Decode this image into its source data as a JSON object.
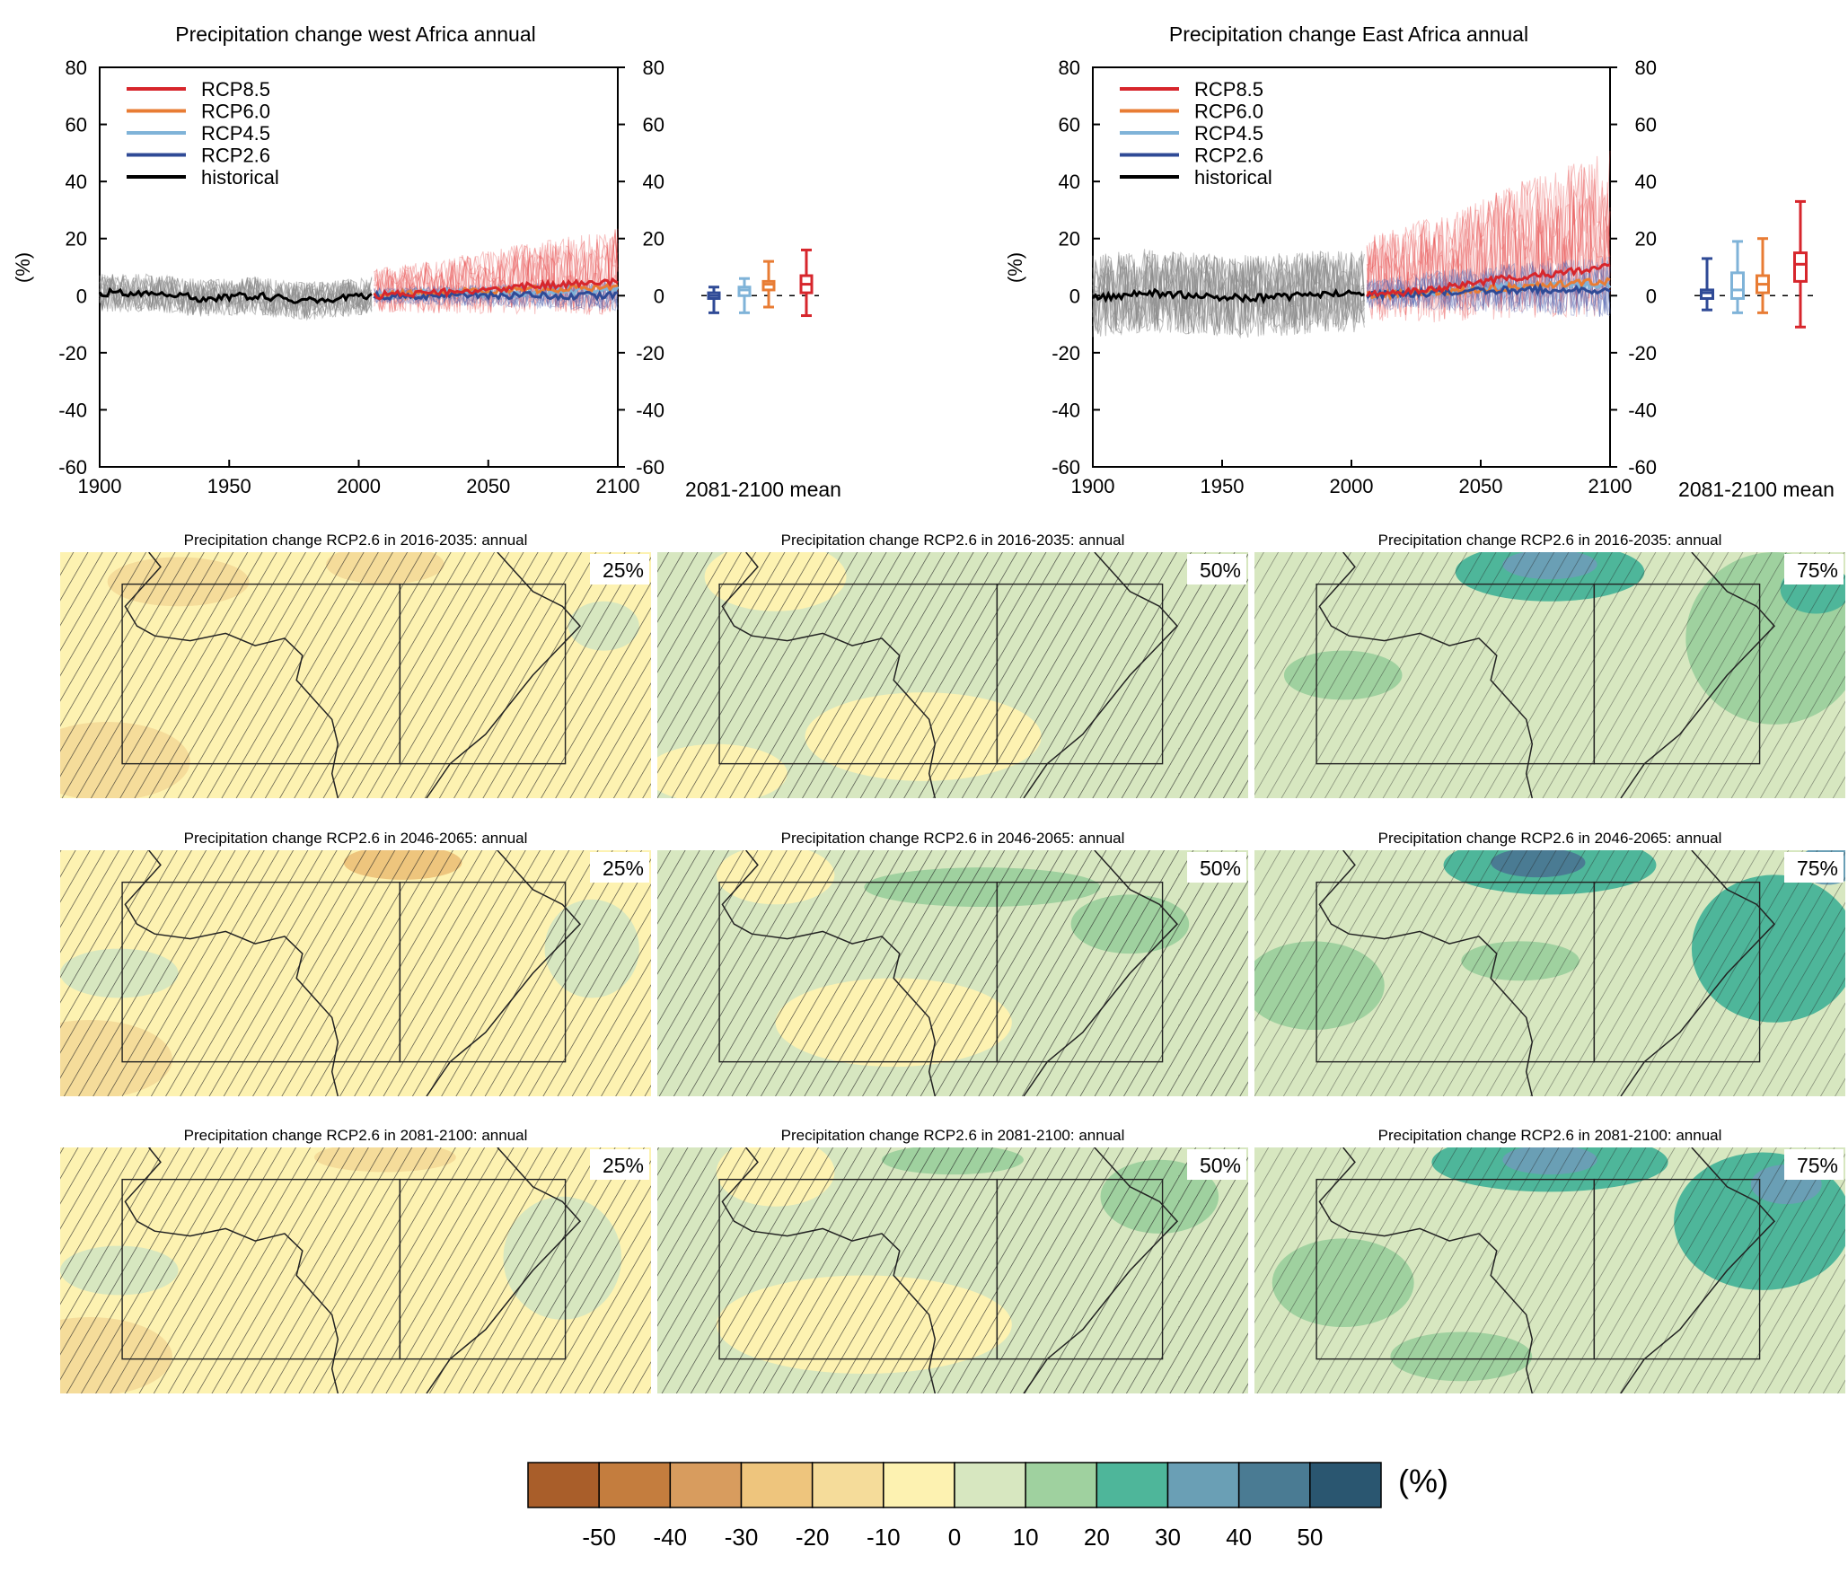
{
  "figure": {
    "legend_labels": [
      "RCP8.5",
      "RCP6.0",
      "RCP4.5",
      "RCP2.6",
      "historical"
    ],
    "legend_colors": [
      "#d7262c",
      "#e87c34",
      "#7fb3d8",
      "#2f4a96",
      "#000000"
    ],
    "ylabel": "(%)",
    "boxplot_label": "2081-2100 mean",
    "colorbar_unit": "(%)"
  },
  "chart_data": [
    {
      "type": "line",
      "title": "Precipitation change west Africa annual",
      "xlabel": "",
      "ylabel": "(%)",
      "xlim": [
        1900,
        2100
      ],
      "ylim": [
        -60,
        80
      ],
      "xticks": [
        1900,
        1950,
        2000,
        2050,
        2100
      ],
      "yticks": [
        80,
        60,
        40,
        20,
        0,
        -20,
        -40,
        -60
      ],
      "right_axis_ticks": [
        80,
        60,
        40,
        20,
        0,
        -20,
        -40,
        -60
      ],
      "series": [
        {
          "name": "historical",
          "x": [
            1900,
            1920,
            1940,
            1960,
            1980,
            2005
          ],
          "y": [
            1,
            1,
            -1,
            0,
            -2,
            0
          ],
          "spread": [
            -12,
            12
          ]
        },
        {
          "name": "RCP2.6",
          "x": [
            2006,
            2030,
            2060,
            2100
          ],
          "y": [
            0,
            0,
            0,
            0
          ],
          "spread": [
            -8,
            8
          ]
        },
        {
          "name": "RCP4.5",
          "x": [
            2006,
            2030,
            2060,
            2100
          ],
          "y": [
            0,
            1,
            1,
            2
          ]
        },
        {
          "name": "RCP6.0",
          "x": [
            2006,
            2030,
            2060,
            2100
          ],
          "y": [
            0,
            1,
            2,
            3
          ]
        },
        {
          "name": "RCP8.5",
          "x": [
            2006,
            2030,
            2060,
            2100
          ],
          "y": [
            0,
            1,
            3,
            5
          ],
          "spread": [
            -18,
            28
          ]
        }
      ],
      "boxplots_2081_2100_mean": [
        {
          "name": "RCP2.6",
          "min": -6,
          "q1": -1,
          "median": 0,
          "q3": 1,
          "max": 3
        },
        {
          "name": "RCP4.5",
          "min": -6,
          "q1": 0,
          "median": 2,
          "q3": 3,
          "max": 6
        },
        {
          "name": "RCP6.0",
          "min": -4,
          "q1": 2,
          "median": 4,
          "q3": 5,
          "max": 12
        },
        {
          "name": "RCP8.5",
          "min": -7,
          "q1": 1,
          "median": 4,
          "q3": 7,
          "max": 16
        }
      ]
    },
    {
      "type": "line",
      "title": "Precipitation change East Africa annual",
      "xlabel": "",
      "ylabel": "(%)",
      "xlim": [
        1900,
        2100
      ],
      "ylim": [
        -60,
        80
      ],
      "xticks": [
        1900,
        1950,
        2000,
        2050,
        2100
      ],
      "yticks": [
        80,
        60,
        40,
        20,
        0,
        -20,
        -40,
        -60
      ],
      "right_axis_ticks": [
        80,
        60,
        40,
        20,
        0,
        -20,
        -40,
        -60
      ],
      "series": [
        {
          "name": "historical",
          "x": [
            1900,
            1920,
            1940,
            1960,
            1980,
            2005
          ],
          "y": [
            -1,
            1,
            0,
            -1,
            0,
            1
          ],
          "spread": [
            -25,
            28
          ]
        },
        {
          "name": "RCP2.6",
          "x": [
            2006,
            2030,
            2060,
            2100
          ],
          "y": [
            0,
            1,
            2,
            2
          ],
          "spread": [
            -15,
            18
          ]
        },
        {
          "name": "RCP4.5",
          "x": [
            2006,
            2030,
            2060,
            2100
          ],
          "y": [
            0,
            1,
            3,
            4
          ]
        },
        {
          "name": "RCP6.0",
          "x": [
            2006,
            2030,
            2060,
            2100
          ],
          "y": [
            0,
            1,
            3,
            5
          ]
        },
        {
          "name": "RCP8.5",
          "x": [
            2006,
            2030,
            2060,
            2100
          ],
          "y": [
            0,
            2,
            6,
            10
          ],
          "spread": [
            -28,
            62
          ]
        }
      ],
      "boxplots_2081_2100_mean": [
        {
          "name": "RCP2.6",
          "min": -5,
          "q1": -1,
          "median": 1,
          "q3": 2,
          "max": 13
        },
        {
          "name": "RCP4.5",
          "min": -6,
          "q1": -1,
          "median": 2,
          "q3": 8,
          "max": 19
        },
        {
          "name": "RCP6.0",
          "min": -6,
          "q1": 1,
          "median": 4,
          "q3": 7,
          "max": 20
        },
        {
          "name": "RCP8.5",
          "min": -11,
          "q1": 5,
          "median": 11,
          "q3": 15,
          "max": 33
        }
      ]
    },
    {
      "type": "heatmap",
      "maps": [
        {
          "title": "Precipitation change RCP2.6 in 2016-2035: annual",
          "percentile": "25%"
        },
        {
          "title": "Precipitation change RCP2.6 in 2016-2035: annual",
          "percentile": "50%"
        },
        {
          "title": "Precipitation change RCP2.6 in 2016-2035: annual",
          "percentile": "75%"
        },
        {
          "title": "Precipitation change RCP2.6 in 2046-2065: annual",
          "percentile": "25%"
        },
        {
          "title": "Precipitation change RCP2.6 in 2046-2065: annual",
          "percentile": "50%"
        },
        {
          "title": "Precipitation change RCP2.6 in 2046-2065: annual",
          "percentile": "75%"
        },
        {
          "title": "Precipitation change RCP2.6 in 2081-2100: annual",
          "percentile": "25%"
        },
        {
          "title": "Precipitation change RCP2.6 in 2081-2100: annual",
          "percentile": "50%"
        },
        {
          "title": "Precipitation change RCP2.6 in 2081-2100: annual",
          "percentile": "75%"
        }
      ],
      "colorbar": {
        "ticks": [
          "-50",
          "-40",
          "-30",
          "-20",
          "-10",
          "0",
          "10",
          "20",
          "30",
          "40",
          "50"
        ],
        "colors": [
          "#a95e2a",
          "#c47d3e",
          "#d89c5e",
          "#eec57d",
          "#f5dc9a",
          "#fdf2b1",
          "#d7e7c0",
          "#9fd19f",
          "#4eb69a",
          "#6a9fb5",
          "#4a7b93",
          "#2a5670"
        ],
        "unit": "(%)"
      }
    }
  ]
}
